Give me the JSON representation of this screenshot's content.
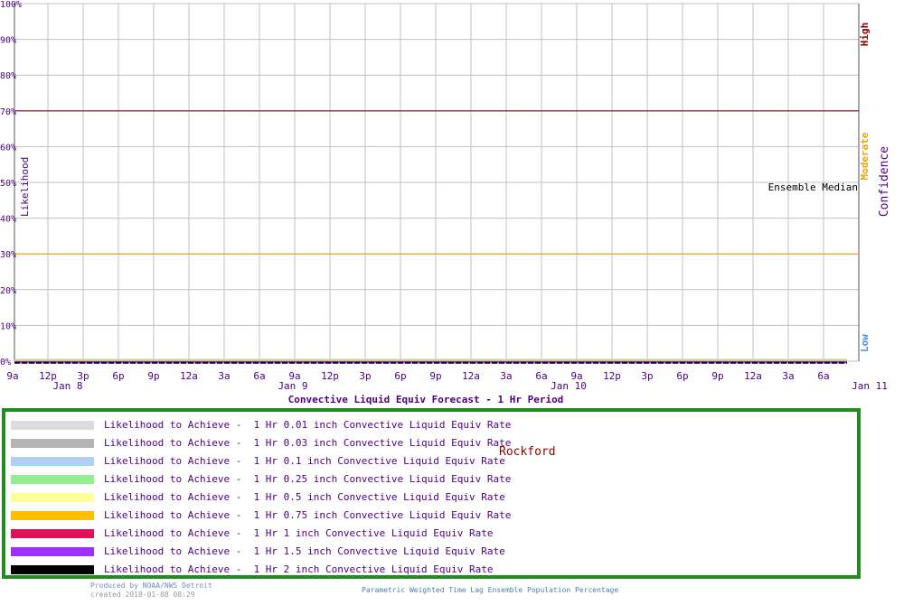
{
  "chart_data": {
    "type": "line",
    "title": "Convective Liquid Equiv Forecast -  1 Hr Period",
    "ylabel": "Likelihood",
    "ylim": [
      0,
      100
    ],
    "y_ticks": [
      "0%",
      "10%",
      "20%",
      "30%",
      "40%",
      "50%",
      "60%",
      "70%",
      "80%",
      "90%",
      "100%"
    ],
    "x_ticks": [
      "9a",
      "12p",
      "3p",
      "6p",
      "9p",
      "12a",
      "3a",
      "6a",
      "9a",
      "12p",
      "3p",
      "6p",
      "9p",
      "12a",
      "3a",
      "6a",
      "9a",
      "12p",
      "3p",
      "6p",
      "9p",
      "12a",
      "3a",
      "6a"
    ],
    "date_labels": [
      "Jan  8",
      "Jan  9",
      "Jan 10",
      "Jan 11"
    ],
    "grid": true,
    "reference_lines": [
      {
        "value": 70,
        "color": "#8b0000"
      },
      {
        "value": 30,
        "color": "#e8a317"
      }
    ],
    "confidence_axis": {
      "label": "Confidence",
      "levels": [
        {
          "label": "High",
          "color": "#8b0000"
        },
        {
          "label": "Moderate",
          "color": "#e8a317"
        },
        {
          "label": "Low",
          "color": "#4a90e2"
        }
      ]
    },
    "annotation": "Ensemble Median",
    "series_values": "all 0 across forecast period",
    "series": [
      {
        "name": "Likelihood to Achieve -  1 Hr 0.01 inch Convective Liquid Equiv Rate",
        "color": "#dcdcdc",
        "values": [
          0
        ]
      },
      {
        "name": "Likelihood to Achieve -  1 Hr 0.03 inch Convective Liquid Equiv Rate",
        "color": "#b4b4b4",
        "values": [
          0
        ]
      },
      {
        "name": "Likelihood to Achieve -  1 Hr 0.1 inch Convective Liquid Equiv Rate",
        "color": "#b0d0f5",
        "values": [
          0
        ]
      },
      {
        "name": "Likelihood to Achieve -  1 Hr 0.25 inch Convective Liquid Equiv Rate",
        "color": "#90ee90",
        "values": [
          0
        ]
      },
      {
        "name": "Likelihood to Achieve -  1 Hr 0.5 inch Convective Liquid Equiv Rate",
        "color": "#ffff99",
        "values": [
          0
        ]
      },
      {
        "name": "Likelihood to Achieve -  1 Hr 0.75 inch Convective Liquid Equiv Rate",
        "color": "#ffbf00",
        "values": [
          0
        ]
      },
      {
        "name": "Likelihood to Achieve -  1 Hr 1 inch Convective Liquid Equiv Rate",
        "color": "#e0105a",
        "values": [
          0
        ]
      },
      {
        "name": "Likelihood to Achieve -  1 Hr 1.5 inch Convective Liquid Equiv Rate",
        "color": "#9b30ff",
        "values": [
          0
        ]
      },
      {
        "name": "Likelihood to Achieve -  1 Hr 2 inch Convective Liquid Equiv Rate",
        "color": "#000000",
        "values": [
          0
        ]
      }
    ]
  },
  "legend": {
    "location": "Rockford"
  },
  "footer": {
    "produced_by": "Produced by NOAA/NWS Detroit",
    "created": "created 2018-01-08 08:29",
    "method": "Parametric Weighted Time Lag Ensemble Population Percentage"
  },
  "colors": {
    "text": "#4b0082",
    "grid": "#c0c0c0",
    "legend_border": "#228b22"
  }
}
